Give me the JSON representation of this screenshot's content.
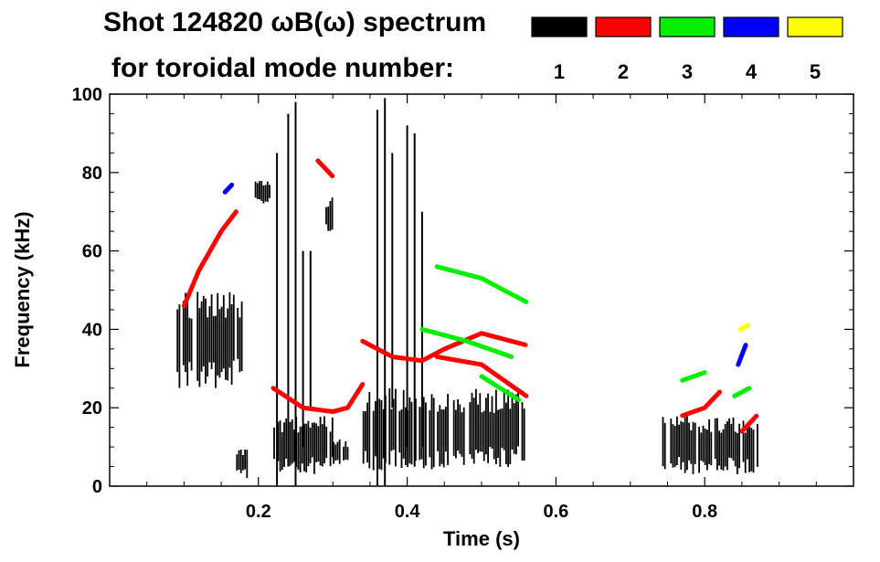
{
  "chart_data": {
    "type": "heatmap",
    "title_line1": "Shot 124820 ωB(ω) spectrum",
    "title_line2": "for toroidal mode number:",
    "xlabel": "Time (s)",
    "ylabel": "Frequency (kHz)",
    "xlim": [
      0.0,
      1.0
    ],
    "ylim": [
      0,
      100
    ],
    "xticks": [
      0.2,
      0.4,
      0.6,
      0.8
    ],
    "yticks": [
      0,
      20,
      40,
      60,
      80,
      100
    ],
    "legend": [
      {
        "label": "1",
        "color": "#000000"
      },
      {
        "label": "2",
        "color": "#ff0000"
      },
      {
        "label": "3",
        "color": "#00ee00"
      },
      {
        "label": "4",
        "color": "#0000ff"
      },
      {
        "label": "5",
        "color": "#ffff00"
      }
    ],
    "modes": [
      {
        "n": "1",
        "color": "#000000",
        "blobs": [
          [
            0.09,
            0.18,
            25,
            50
          ],
          [
            0.17,
            0.185,
            2,
            10
          ],
          [
            0.195,
            0.215,
            72,
            78
          ],
          [
            0.22,
            0.3,
            3,
            18
          ],
          [
            0.29,
            0.3,
            64,
            74
          ],
          [
            0.3,
            0.32,
            5,
            12
          ],
          [
            0.34,
            0.56,
            4,
            25
          ],
          [
            0.74,
            0.87,
            3,
            18
          ]
        ],
        "streaks": [
          [
            0.225,
            0,
            85
          ],
          [
            0.24,
            5,
            95
          ],
          [
            0.25,
            0,
            98
          ],
          [
            0.26,
            10,
            60
          ],
          [
            0.27,
            20,
            60
          ],
          [
            0.36,
            0,
            96
          ],
          [
            0.37,
            0,
            99
          ],
          [
            0.38,
            20,
            85
          ],
          [
            0.4,
            10,
            92
          ],
          [
            0.41,
            5,
            90
          ],
          [
            0.42,
            10,
            70
          ]
        ]
      },
      {
        "n": "2",
        "color": "#ff0000",
        "segments": [
          [
            [
              0.1,
              46
            ],
            [
              0.12,
              55
            ],
            [
              0.15,
              65
            ],
            [
              0.17,
              70
            ]
          ],
          [
            [
              0.22,
              25
            ],
            [
              0.26,
              20
            ],
            [
              0.3,
              19
            ],
            [
              0.32,
              20
            ],
            [
              0.34,
              26
            ]
          ],
          [
            [
              0.28,
              83
            ],
            [
              0.3,
              79
            ]
          ],
          [
            [
              0.34,
              37
            ],
            [
              0.38,
              33
            ],
            [
              0.42,
              32
            ],
            [
              0.45,
              35
            ],
            [
              0.5,
              39
            ],
            [
              0.56,
              36
            ]
          ],
          [
            [
              0.44,
              33
            ],
            [
              0.5,
              31
            ],
            [
              0.56,
              23
            ]
          ],
          [
            [
              0.77,
              18
            ],
            [
              0.8,
              20
            ],
            [
              0.82,
              24
            ]
          ],
          [
            [
              0.85,
              14
            ],
            [
              0.87,
              18
            ]
          ]
        ]
      },
      {
        "n": "3",
        "color": "#00ee00",
        "segments": [
          [
            [
              0.44,
              56
            ],
            [
              0.5,
              53
            ],
            [
              0.56,
              47
            ]
          ],
          [
            [
              0.42,
              40
            ],
            [
              0.48,
              37
            ],
            [
              0.54,
              33
            ]
          ],
          [
            [
              0.5,
              28
            ],
            [
              0.55,
              22
            ]
          ],
          [
            [
              0.77,
              27
            ],
            [
              0.8,
              29
            ]
          ],
          [
            [
              0.84,
              23
            ],
            [
              0.86,
              25
            ]
          ]
        ]
      },
      {
        "n": "4",
        "color": "#0000ff",
        "segments": [
          [
            [
              0.845,
              31
            ],
            [
              0.855,
              36
            ]
          ],
          [
            [
              0.155,
              75
            ],
            [
              0.165,
              77
            ]
          ]
        ]
      },
      {
        "n": "5",
        "color": "#ffff00",
        "segments": [
          [
            [
              0.848,
              40
            ],
            [
              0.858,
              41
            ]
          ]
        ]
      }
    ]
  }
}
